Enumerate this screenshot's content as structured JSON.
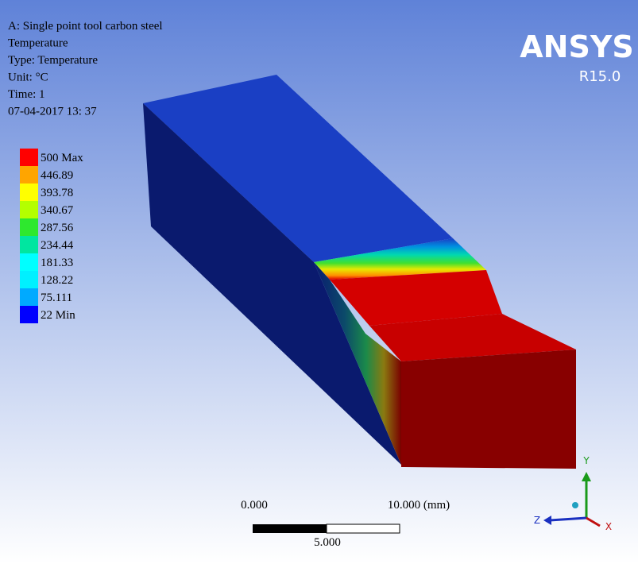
{
  "header": {
    "lines": [
      "A: Single point tool carbon steel",
      "Temperature",
      "Type: Temperature",
      "Unit: °C",
      "Time: 1",
      "07-04-2017 13: 37"
    ]
  },
  "logo": {
    "name": "ANSYS",
    "version": "R15.0"
  },
  "legend": {
    "entries": [
      {
        "label": "500 Max",
        "color": "#ff0000"
      },
      {
        "label": "446.89",
        "color": "#ffa500"
      },
      {
        "label": "393.78",
        "color": "#ffff00"
      },
      {
        "label": "340.67",
        "color": "#b4ff00"
      },
      {
        "label": "287.56",
        "color": "#2ee82e"
      },
      {
        "label": "234.44",
        "color": "#00e6a0"
      },
      {
        "label": "181.33",
        "color": "#00ffff"
      },
      {
        "label": "128.22",
        "color": "#00f0ff"
      },
      {
        "label": "75.111",
        "color": "#00aaff"
      },
      {
        "label": "22 Min",
        "color": "#0000ff"
      }
    ]
  },
  "scale_bar": {
    "start": "0.000",
    "end": "10.000 (mm)",
    "middle": "5.000"
  },
  "triad": {
    "y": "Y",
    "z": "Z",
    "x": "X"
  }
}
